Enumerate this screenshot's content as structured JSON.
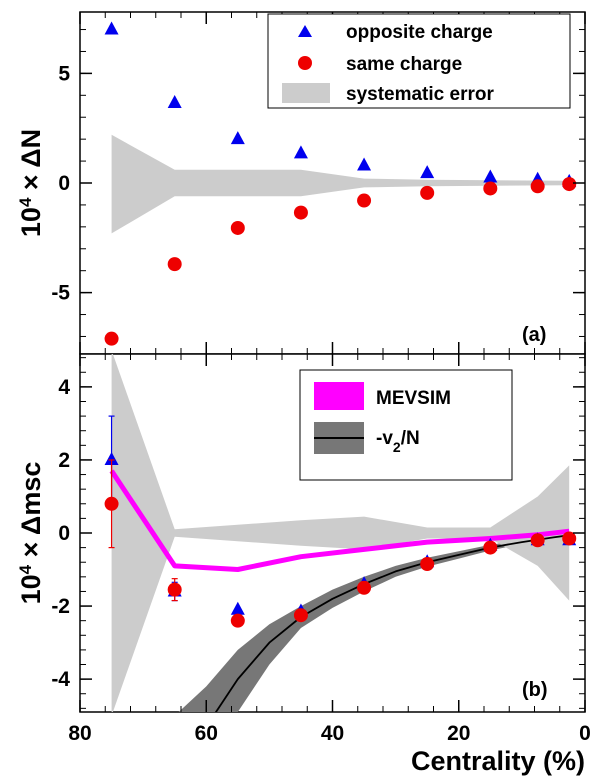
{
  "chart_data": [
    {
      "type": "scatter",
      "panel_label": "(a)",
      "ylabel_prefix": "10",
      "ylabel_exp": "4",
      "ylabel_suffix": " × ΔN",
      "xlim": [
        80,
        0
      ],
      "ylim": [
        -7.8,
        7.8
      ],
      "yticks": [
        -5,
        0,
        5
      ],
      "ytick_labels": [
        "-5",
        "0",
        "5"
      ],
      "grid": false,
      "legend_position": "top-right",
      "legend": [
        "opposite charge",
        "same charge",
        "systematic error"
      ],
      "series": [
        {
          "name": "opposite charge",
          "marker": "triangle",
          "color": "#0000ee",
          "x": [
            75,
            65,
            55,
            45,
            35,
            25,
            15,
            7.5,
            2.5
          ],
          "y": [
            7.0,
            3.65,
            2.0,
            1.35,
            0.8,
            0.45,
            0.25,
            0.15,
            0.05
          ]
        },
        {
          "name": "same charge",
          "marker": "circle",
          "color": "#ee0000",
          "x": [
            75,
            65,
            55,
            45,
            35,
            25,
            15,
            7.5,
            2.5
          ],
          "y": [
            -7.1,
            -3.7,
            -2.05,
            -1.35,
            -0.8,
            -0.45,
            -0.25,
            -0.15,
            -0.05
          ]
        }
      ],
      "band": {
        "name": "systematic error",
        "color": "#cccccc",
        "x": [
          75,
          65,
          45,
          35,
          25,
          2.5
        ],
        "upper": [
          2.2,
          0.6,
          0.6,
          0.2,
          0.15,
          0.1
        ],
        "lower": [
          -2.3,
          -0.6,
          -0.6,
          -0.2,
          -0.15,
          -0.1
        ]
      }
    },
    {
      "type": "line",
      "panel_label": "(b)",
      "ylabel_prefix": "10",
      "ylabel_exp": "4",
      "ylabel_suffix": " × Δmsc",
      "xlabel": "Centrality (%)",
      "xlim": [
        80,
        0
      ],
      "ylim": [
        -4.9,
        4.9
      ],
      "xticks": [
        80,
        60,
        40,
        20,
        0
      ],
      "xtick_labels": [
        "80",
        "60",
        "40",
        "20",
        "0"
      ],
      "yticks": [
        -4,
        -2,
        0,
        2,
        4
      ],
      "ytick_labels": [
        "-4",
        "-2",
        "0",
        "2",
        "4"
      ],
      "grid": false,
      "legend_position": "top-right",
      "legend": [
        "MEVSIM",
        "-v",
        "2",
        "/N"
      ],
      "series": [
        {
          "name": "opposite charge",
          "marker": "triangle",
          "color": "#0000ee",
          "x": [
            75,
            65,
            55,
            45,
            35,
            25,
            15,
            7.5,
            2.5
          ],
          "y": [
            2.0,
            -1.6,
            -2.1,
            -2.15,
            -1.4,
            -0.8,
            -0.35,
            -0.2,
            -0.2
          ],
          "err": [
            1.2,
            0.25,
            0,
            0,
            0,
            0,
            0,
            0,
            0
          ]
        },
        {
          "name": "same charge",
          "marker": "circle",
          "color": "#ee0000",
          "x": [
            75,
            65,
            55,
            45,
            35,
            25,
            15,
            7.5,
            2.5
          ],
          "y": [
            0.8,
            -1.55,
            -2.4,
            -2.25,
            -1.5,
            -0.85,
            -0.4,
            -0.2,
            -0.15
          ],
          "err": [
            1.2,
            0.3,
            0,
            0,
            0,
            0,
            0,
            0,
            0
          ]
        },
        {
          "name": "MEVSIM",
          "marker": "line",
          "color": "#ff00ff",
          "x": [
            75,
            65,
            55,
            45,
            35,
            25,
            15,
            7.5,
            2.5
          ],
          "y": [
            1.7,
            -0.9,
            -1.0,
            -0.65,
            -0.45,
            -0.25,
            -0.15,
            -0.05,
            0.05
          ]
        },
        {
          "name": "-v2/N",
          "marker": "line",
          "color": "#000000",
          "x": [
            60,
            55,
            50,
            45,
            40,
            35,
            30,
            25,
            20,
            15,
            10,
            5,
            2
          ],
          "y": [
            -5.3,
            -4.0,
            -3.0,
            -2.3,
            -1.8,
            -1.4,
            -1.05,
            -0.8,
            -0.6,
            -0.4,
            -0.25,
            -0.12,
            -0.05
          ]
        }
      ],
      "bands": [
        {
          "name": "-v2/N",
          "color": "#777777",
          "x": [
            65,
            60,
            55,
            50,
            45,
            40,
            35,
            30,
            25,
            20,
            15,
            10,
            5,
            2
          ],
          "upper": [
            -5.0,
            -4.2,
            -3.2,
            -2.5,
            -2.0,
            -1.55,
            -1.2,
            -0.9,
            -0.68,
            -0.5,
            -0.32,
            -0.2,
            -0.1,
            -0.03
          ],
          "lower": [
            -5.5,
            -5.5,
            -4.9,
            -3.6,
            -2.6,
            -2.05,
            -1.6,
            -1.2,
            -0.92,
            -0.7,
            -0.48,
            -0.3,
            -0.14,
            -0.07
          ]
        },
        {
          "name": "systematic error",
          "color": "#cccccc",
          "x": [
            75,
            65,
            45,
            35,
            25,
            15,
            7.5,
            2.5
          ],
          "upper": [
            5.0,
            0.1,
            0.35,
            0.45,
            0.15,
            0.15,
            1.0,
            1.85
          ],
          "lower": [
            -5.0,
            -0.1,
            -0.35,
            -0.45,
            -0.15,
            -0.15,
            -0.9,
            -1.85
          ]
        }
      ]
    }
  ]
}
